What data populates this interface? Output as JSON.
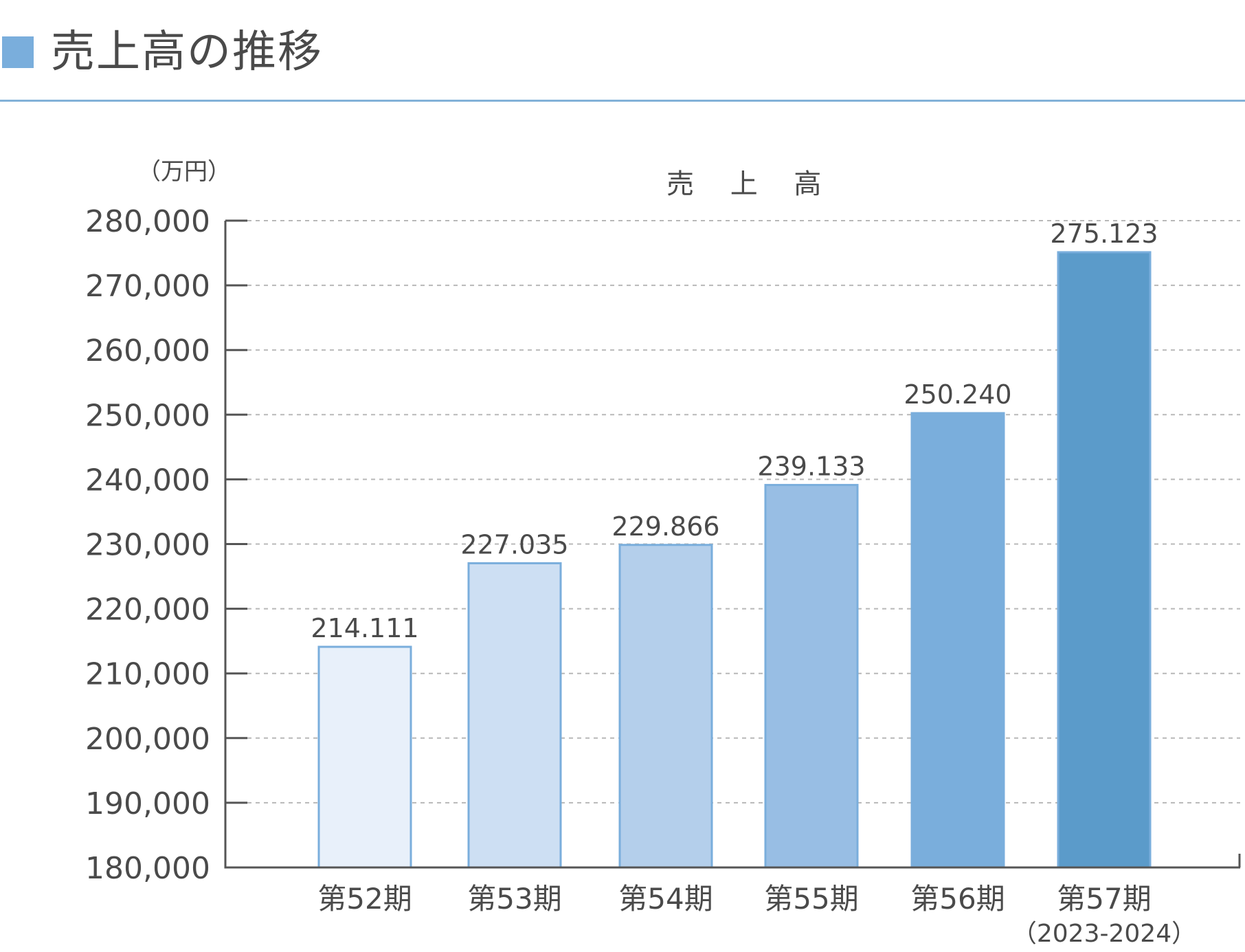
{
  "header": {
    "title": "売上高の推移"
  },
  "colors": {
    "accent": "#7aaedc",
    "rule": "#82b1d8",
    "axis": "#555555",
    "grid": "#b8b8b8",
    "bar_outline": "#7aaedc",
    "bar_fills": [
      "#e8f0fa",
      "#cddff3",
      "#b4cfeb",
      "#98bee4",
      "#7aaedc",
      "#5b9bca"
    ]
  },
  "chart_data": {
    "type": "bar",
    "title": "売 上 高",
    "unit_label": "（万円）",
    "categories": [
      "第52期",
      "第53期",
      "第54期",
      "第55期",
      "第56期",
      "第57期"
    ],
    "category_sublabels": [
      "",
      "",
      "",
      "",
      "",
      "（2023-2024）"
    ],
    "values": [
      214111,
      227035,
      229866,
      239133,
      250240,
      275123
    ],
    "value_labels": [
      "214.111",
      "227.035",
      "229.866",
      "239.133",
      "250.240",
      "275.123"
    ],
    "y_ticks": [
      "180,000",
      "190,000",
      "200,000",
      "210,000",
      "220,000",
      "230,000",
      "240,000",
      "250,000",
      "260,000",
      "270,000",
      "280,000"
    ],
    "ylim": [
      180000,
      280000
    ],
    "grid": true,
    "legend": "none"
  }
}
